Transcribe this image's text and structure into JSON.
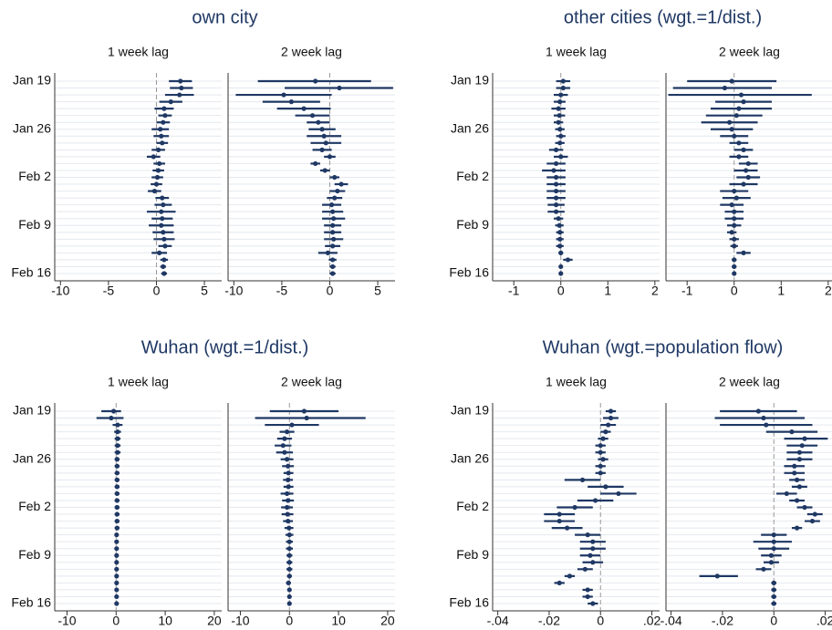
{
  "chart_data": [
    {
      "type": "errorbar",
      "title": "own city",
      "color": "#1f3864",
      "reference_line": 0,
      "categories": [
        "Jan 19",
        null,
        null,
        null,
        null,
        null,
        null,
        "Jan 26",
        null,
        null,
        null,
        null,
        null,
        null,
        "Feb 2",
        null,
        null,
        null,
        null,
        null,
        null,
        "Feb 9",
        null,
        null,
        null,
        null,
        null,
        null,
        "Feb 16"
      ],
      "panels": [
        {
          "subtitle": "1 week lag",
          "xlim": [
            -10.6,
            6.8
          ],
          "xticks": [
            -10,
            -5,
            0,
            5
          ],
          "values": [
            2.5,
            2.6,
            2.4,
            1.5,
            0.8,
            0.9,
            0.7,
            0.4,
            0.5,
            0.6,
            0.2,
            -0.3,
            0.3,
            0.2,
            0.1,
            0,
            -0.2,
            0.6,
            0.7,
            0.5,
            0.6,
            0.5,
            0.7,
            0.8,
            0.9,
            0.3,
            0.8,
            0.7,
            0.8
          ],
          "lower": [
            1.3,
            1.4,
            0.9,
            0.3,
            -0.2,
            0.2,
            0,
            -0.5,
            -0.3,
            0,
            -0.5,
            -1,
            -0.3,
            -0.4,
            -0.5,
            -0.6,
            -0.9,
            -0.1,
            -0.2,
            -1,
            -0.5,
            -0.8,
            -0.4,
            -0.3,
            0.2,
            -0.5,
            0.4,
            0.4,
            0.5
          ],
          "upper": [
            3.7,
            3.8,
            3.9,
            2.7,
            1.8,
            1.6,
            1.4,
            1.3,
            1.3,
            1.2,
            0.9,
            0.4,
            0.9,
            0.8,
            0.7,
            0.6,
            0.5,
            1.3,
            1.6,
            2,
            1.7,
            1.8,
            1.8,
            1.9,
            1.6,
            1.1,
            1.2,
            1,
            1.1
          ]
        },
        {
          "subtitle": "2 week lag",
          "xlim": [
            -10.6,
            6.8
          ],
          "xticks": [
            -10,
            -5,
            0,
            5
          ],
          "values": [
            -1.5,
            1,
            -4.8,
            -4,
            -2.7,
            -1.8,
            -1.2,
            -0.8,
            -0.6,
            -0.4,
            -0.8,
            0,
            -1.5,
            -0.5,
            0.5,
            1.2,
            0.8,
            0.5,
            0.2,
            0.3,
            0.4,
            0.3,
            0.3,
            0.4,
            0.3,
            -0.2,
            0.3,
            0.3,
            0.3
          ],
          "lower": [
            -7.5,
            -4.7,
            -9.8,
            -7,
            -5.5,
            -3.6,
            -2.4,
            -2.2,
            -2.4,
            -2,
            -1.8,
            -0.6,
            -2,
            -1,
            0,
            0.5,
            0,
            -0.3,
            -0.8,
            -0.8,
            -0.8,
            -0.6,
            -0.6,
            -0.6,
            -0.5,
            -1.2,
            -0.1,
            0,
            0
          ],
          "upper": [
            4.3,
            6.6,
            0.2,
            -1,
            0.1,
            0,
            0,
            0.6,
            1.2,
            1.2,
            0.2,
            0.6,
            -1,
            0,
            1,
            1.9,
            1.6,
            1.3,
            1.2,
            1.4,
            1.6,
            1.2,
            1.2,
            1.4,
            1.1,
            0.8,
            0.7,
            0.6,
            0.6
          ]
        }
      ]
    },
    {
      "type": "errorbar",
      "title": "other cities (wgt.=1/dist.)",
      "color": "#1f3864",
      "reference_line": 0,
      "categories": [
        "Jan 19",
        null,
        null,
        null,
        null,
        null,
        null,
        "Jan 26",
        null,
        null,
        null,
        null,
        null,
        null,
        "Feb 2",
        null,
        null,
        null,
        null,
        null,
        null,
        "Feb 9",
        null,
        null,
        null,
        null,
        null,
        null,
        "Feb 16"
      ],
      "panels": [
        {
          "subtitle": "1 week lag",
          "xlim": [
            -1.45,
            2.1
          ],
          "xticks": [
            -1,
            0,
            1,
            2
          ],
          "values": [
            0.05,
            0.05,
            0,
            -0.02,
            -0.05,
            -0.03,
            -0.05,
            -0.02,
            0,
            -0.02,
            -0.1,
            0,
            -0.1,
            -0.15,
            -0.1,
            -0.1,
            -0.1,
            -0.1,
            -0.1,
            -0.1,
            -0.05,
            -0.03,
            -0.02,
            -0.02,
            -0.02,
            0,
            0.15,
            0,
            0
          ],
          "lower": [
            -0.1,
            -0.1,
            -0.15,
            -0.15,
            -0.2,
            -0.15,
            -0.15,
            -0.12,
            -0.1,
            -0.12,
            -0.25,
            -0.15,
            -0.3,
            -0.4,
            -0.3,
            -0.3,
            -0.3,
            -0.3,
            -0.28,
            -0.28,
            -0.15,
            -0.12,
            -0.1,
            -0.1,
            -0.1,
            -0.05,
            0.05,
            -0.03,
            -0.03
          ],
          "upper": [
            0.2,
            0.2,
            0.15,
            0.1,
            0.1,
            0.09,
            0.05,
            0.08,
            0.1,
            0.08,
            0.05,
            0.15,
            0.1,
            0.1,
            0.1,
            0.1,
            0.1,
            0.1,
            0.08,
            0.08,
            0.05,
            0.06,
            0.06,
            0.06,
            0.06,
            0.05,
            0.25,
            0.03,
            0.03
          ]
        },
        {
          "subtitle": "2 week lag",
          "xlim": [
            -1.45,
            2.1
          ],
          "xticks": [
            -1,
            0,
            1,
            2
          ],
          "values": [
            -0.05,
            -0.2,
            0.15,
            0.2,
            0.1,
            0.05,
            -0.1,
            -0.05,
            0,
            0.1,
            0.2,
            0.1,
            0.3,
            0.25,
            0.3,
            0.2,
            0,
            0.05,
            -0.05,
            0,
            0,
            0,
            -0.05,
            0,
            0,
            0.2,
            0,
            0,
            0
          ],
          "lower": [
            -1,
            -1.3,
            -1.4,
            -0.4,
            -0.5,
            -0.6,
            -0.7,
            -0.5,
            -0.3,
            -0.1,
            0,
            -0.1,
            0.1,
            0,
            0.05,
            -0.1,
            -0.3,
            -0.25,
            -0.3,
            -0.2,
            -0.2,
            -0.15,
            -0.15,
            -0.1,
            -0.08,
            0.05,
            -0.05,
            -0.05,
            -0.04
          ],
          "upper": [
            0.9,
            0.8,
            1.65,
            0.8,
            0.8,
            0.6,
            0.5,
            0.4,
            0.3,
            0.3,
            0.4,
            0.3,
            0.5,
            0.5,
            0.55,
            0.5,
            0.3,
            0.35,
            0.2,
            0.2,
            0.2,
            0.15,
            0.05,
            0.1,
            0.08,
            0.35,
            0.05,
            0.05,
            0.04
          ]
        }
      ]
    },
    {
      "type": "errorbar",
      "title": "Wuhan (wgt.=1/dist.)",
      "color": "#1f3864",
      "reference_line": 0,
      "categories": [
        "Jan 19",
        null,
        null,
        null,
        null,
        null,
        null,
        "Jan 26",
        null,
        null,
        null,
        null,
        null,
        null,
        "Feb 2",
        null,
        null,
        null,
        null,
        null,
        null,
        "Feb 9",
        null,
        null,
        null,
        null,
        null,
        null,
        "Feb 16"
      ],
      "panels": [
        {
          "subtitle": "1 week lag",
          "xlim": [
            -12.5,
            21.5
          ],
          "xticks": [
            -10,
            0,
            10,
            20
          ],
          "values": [
            -0.5,
            -1,
            0.3,
            0.3,
            0.3,
            0.3,
            0.3,
            0.2,
            0.2,
            0.2,
            0.2,
            0.2,
            0.2,
            0.2,
            0.2,
            0.2,
            0.2,
            0.2,
            0.1,
            0.1,
            0.1,
            0.1,
            0.1,
            0.1,
            0.1,
            0.1,
            0.1,
            0.1,
            0.1
          ],
          "lower": [
            -3,
            -4,
            -0.7,
            -0.4,
            -0.3,
            -0.3,
            -0.3,
            -0.3,
            -0.3,
            -0.3,
            -0.3,
            -0.3,
            -0.3,
            -0.3,
            -0.3,
            -0.3,
            -0.3,
            -0.3,
            -0.3,
            -0.3,
            -0.3,
            -0.3,
            -0.3,
            -0.3,
            -0.3,
            -0.2,
            -0.2,
            -0.2,
            -0.2
          ],
          "upper": [
            1,
            1.5,
            1.3,
            1,
            0.9,
            0.9,
            0.9,
            0.7,
            0.7,
            0.7,
            0.7,
            0.7,
            0.7,
            0.7,
            0.7,
            0.7,
            0.7,
            0.7,
            0.5,
            0.5,
            0.5,
            0.5,
            0.5,
            0.5,
            0.5,
            0.4,
            0.4,
            0.4,
            0.4
          ]
        },
        {
          "subtitle": "2 week lag",
          "xlim": [
            -12.5,
            21.5
          ],
          "xticks": [
            -10,
            0,
            10,
            20
          ],
          "values": [
            3,
            3.5,
            0.5,
            -0.5,
            -1,
            -1.3,
            -1,
            -0.5,
            -0.3,
            -0.2,
            -0.3,
            -0.2,
            -0.5,
            -0.3,
            -0.5,
            -0.4,
            -0.3,
            -0.1,
            0,
            0,
            0,
            0,
            0,
            0,
            0,
            -0.2,
            0,
            0,
            0
          ],
          "lower": [
            -4,
            -7,
            -5,
            -2,
            -2.5,
            -3,
            -2.7,
            -1.8,
            -1.5,
            -1.2,
            -1.3,
            -1.2,
            -1.8,
            -1.5,
            -1.7,
            -1.6,
            -1.3,
            -1,
            -0.8,
            -0.7,
            -0.7,
            -0.6,
            -0.6,
            -0.6,
            -0.5,
            -0.7,
            -0.4,
            -0.4,
            -0.4
          ],
          "upper": [
            10,
            15.5,
            6,
            1,
            0.5,
            0.4,
            0.7,
            0.8,
            0.9,
            0.8,
            0.7,
            0.8,
            0.8,
            0.9,
            0.7,
            0.8,
            0.7,
            0.8,
            0.8,
            0.7,
            0.7,
            0.6,
            0.6,
            0.6,
            0.5,
            0.3,
            0.4,
            0.4,
            0.4
          ]
        }
      ]
    },
    {
      "type": "errorbar",
      "title": "Wuhan (wgt.=population flow)",
      "color": "#1f3864",
      "reference_line": 0,
      "categories": [
        "Jan 19",
        null,
        null,
        null,
        null,
        null,
        null,
        "Jan 26",
        null,
        null,
        null,
        null,
        null,
        null,
        "Feb 2",
        null,
        null,
        null,
        null,
        null,
        null,
        "Feb 9",
        null,
        null,
        null,
        null,
        null,
        null,
        "Feb 16"
      ],
      "panels": [
        {
          "subtitle": "1 week lag",
          "xlim": [
            -0.042,
            0.023
          ],
          "xticks": [
            {
              "value": -0.04,
              "label": "-.04"
            },
            {
              "value": -0.02,
              "label": "-.02"
            },
            0,
            {
              "value": 0.02,
              "label": ".02"
            }
          ],
          "values": [
            0.004,
            0.004,
            0.003,
            0.002,
            0.001,
            0,
            0,
            0.001,
            0,
            0,
            -0.007,
            0.002,
            0.007,
            -0.002,
            -0.01,
            -0.016,
            -0.016,
            -0.013,
            -0.005,
            -0.003,
            -0.003,
            -0.004,
            -0.003,
            -0.006,
            -0.012,
            -0.016,
            -0.005,
            -0.005,
            -0.003
          ],
          "lower": [
            0.002,
            0.001,
            0,
            0,
            -0.001,
            -0.002,
            -0.002,
            -0.001,
            -0.002,
            -0.002,
            -0.014,
            -0.005,
            0,
            -0.009,
            -0.017,
            -0.022,
            -0.022,
            -0.019,
            -0.01,
            -0.008,
            -0.008,
            -0.008,
            -0.007,
            -0.009,
            -0.014,
            -0.018,
            -0.007,
            -0.007,
            -0.005
          ],
          "upper": [
            0.006,
            0.007,
            0.006,
            0.004,
            0.003,
            0.002,
            0.002,
            0.003,
            0.002,
            0.002,
            0,
            0.009,
            0.014,
            0.005,
            -0.003,
            -0.01,
            -0.01,
            -0.007,
            0,
            0.002,
            0.002,
            0,
            0.001,
            -0.003,
            -0.01,
            -0.014,
            -0.003,
            -0.003,
            -0.001
          ]
        },
        {
          "subtitle": "2 week lag",
          "xlim": [
            -0.042,
            0.023
          ],
          "xticks": [
            {
              "value": -0.04,
              "label": "-.04"
            },
            {
              "value": -0.02,
              "label": "-.02"
            },
            0,
            {
              "value": 0.02,
              "label": ".02"
            }
          ],
          "values": [
            -0.006,
            -0.004,
            -0.003,
            0.007,
            0.012,
            0.011,
            0.01,
            0.01,
            0.008,
            0.008,
            0.009,
            0.01,
            0.005,
            0.009,
            0.012,
            0.016,
            0.015,
            0.009,
            0,
            0,
            0,
            -0.001,
            -0.001,
            -0.004,
            -0.022,
            0,
            0,
            0,
            0
          ],
          "lower": [
            -0.021,
            -0.023,
            -0.021,
            -0.003,
            0.004,
            0.005,
            0.005,
            0.005,
            0.004,
            0.004,
            0.006,
            0.007,
            0.001,
            0.006,
            0.009,
            0.013,
            0.012,
            0.007,
            -0.005,
            -0.008,
            -0.006,
            -0.005,
            -0.004,
            -0.007,
            -0.029,
            -0.001,
            -0.001,
            -0.001,
            -0.001
          ],
          "upper": [
            0.009,
            0.012,
            0.015,
            0.017,
            0.021,
            0.017,
            0.015,
            0.015,
            0.012,
            0.012,
            0.012,
            0.013,
            0.009,
            0.012,
            0.015,
            0.019,
            0.018,
            0.011,
            0.005,
            0.007,
            0.006,
            0.003,
            0.002,
            -0.001,
            -0.014,
            0.001,
            0.001,
            0.001,
            0.001
          ]
        }
      ]
    }
  ]
}
